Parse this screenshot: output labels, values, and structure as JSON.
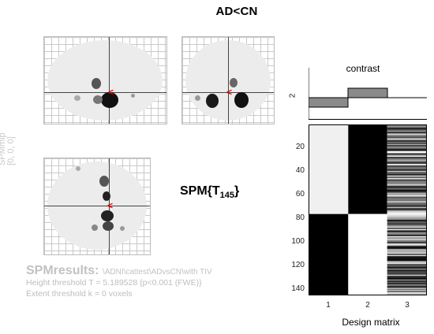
{
  "figure": {
    "title": "AD<CN",
    "coords_text": "[0, 0, 0]",
    "coords_faint": "SPMmip",
    "spm_stat": "SPM{T",
    "spm_df": "145",
    "spm_close": "}"
  },
  "results": {
    "title": "SPMresults:",
    "path": "\\ADNI\\cattest\\ADvsCN\\with TIV",
    "height_threshold": "Height threshold T = 5.189528  {p<0.001 (FWE)}",
    "extent_threshold": "Extent threshold k = 0 voxels"
  },
  "contrast": {
    "label": "contrast",
    "y_tick": "2",
    "weights": [
      -1,
      1,
      0
    ]
  },
  "design_matrix": {
    "title": "Design matrix",
    "y_ticks": [
      "20",
      "40",
      "60",
      "80",
      "100",
      "120",
      "140"
    ],
    "y_tick_values": [
      20,
      40,
      60,
      80,
      100,
      120,
      140
    ],
    "n_rows": 145,
    "split_row": 76,
    "x_ticks": [
      "1",
      "2",
      "3"
    ]
  },
  "colors": {
    "arrow": "#e00000",
    "contrast_bar": "#8a8a8a"
  }
}
